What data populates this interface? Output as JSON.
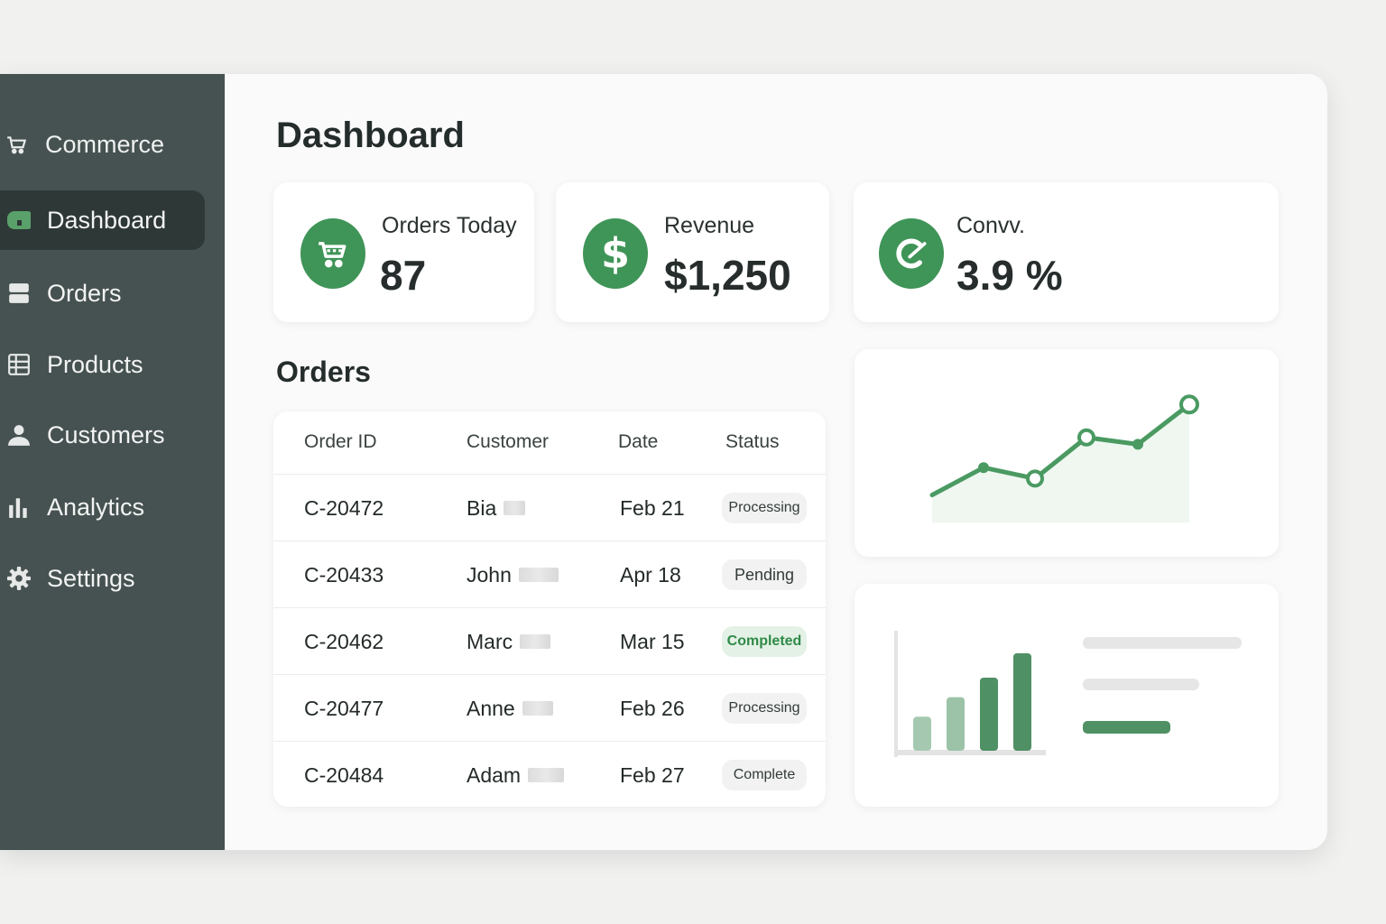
{
  "sidebar": {
    "brand": "Commerce",
    "items": [
      {
        "label": "Dashboard",
        "icon": "dashboard-icon",
        "active": true
      },
      {
        "label": "Orders",
        "icon": "orders-icon",
        "active": false
      },
      {
        "label": "Products",
        "icon": "products-grid-icon",
        "active": false
      },
      {
        "label": "Customers",
        "icon": "user-icon",
        "active": false
      },
      {
        "label": "Analytics",
        "icon": "bar-chart-icon",
        "active": false
      },
      {
        "label": "Settings",
        "icon": "gear-icon",
        "active": false
      }
    ]
  },
  "main": {
    "title": "Dashboard",
    "stats": [
      {
        "label": "Orders Today",
        "value": "87",
        "icon": "cart-icon"
      },
      {
        "label": "Revenue",
        "value": "$1,250",
        "icon": "dollar-icon"
      },
      {
        "label": "Convv.",
        "value": "3.9 %",
        "icon": "conversion-icon"
      }
    ],
    "orders": {
      "title": "Orders",
      "headers": [
        "Order ID",
        "Customer",
        "Date",
        "Status"
      ],
      "rows": [
        {
          "id": "C-20472",
          "customer": "Bia",
          "date": "Feb 21",
          "status": "Processing"
        },
        {
          "id": "C-20433",
          "customer": "John",
          "date": "Apr 18",
          "status": "Pending"
        },
        {
          "id": "C-20462",
          "customer": "Marc",
          "date": "Mar 15",
          "status": "Completed"
        },
        {
          "id": "C-20477",
          "customer": "Anne",
          "date": "Feb 26",
          "status": "Processing"
        },
        {
          "id": "C-20484",
          "customer": "Adam",
          "date": "Feb 27",
          "status": "Complete"
        }
      ]
    }
  },
  "colors": {
    "accent": "#3f9457",
    "sidebar_bg": "#465251",
    "sidebar_active": "#2e3837"
  },
  "chart_data": [
    {
      "type": "line",
      "x": [
        1,
        2,
        3,
        4,
        5,
        6
      ],
      "values": [
        20,
        40,
        32,
        62,
        57,
        86
      ],
      "ylim": [
        0,
        100
      ],
      "fill": true,
      "grid": false
    },
    {
      "type": "bar",
      "categories": [
        "1",
        "2",
        "3",
        "4"
      ],
      "values": [
        35,
        55,
        75,
        100
      ],
      "ylim": [
        0,
        100
      ],
      "grid": false
    }
  ]
}
